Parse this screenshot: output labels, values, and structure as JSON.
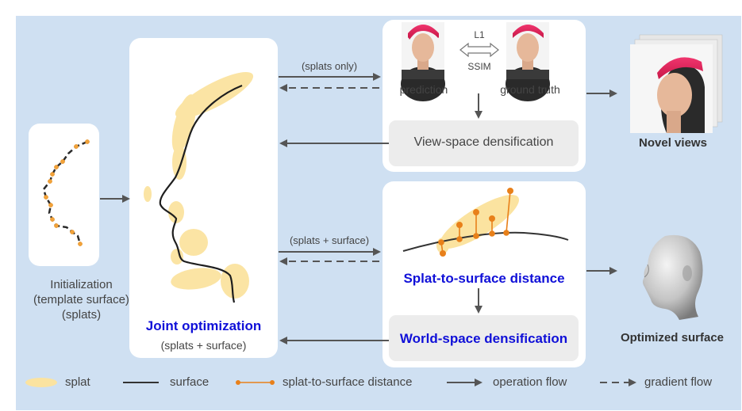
{
  "labels": {
    "initialization": [
      "Initialization",
      "(template surface)",
      "(splats)"
    ],
    "joint_optimization": "Joint optimization",
    "joint_optimization_sub": "(splats + surface)",
    "splats_only": "(splats only)",
    "splats_surface": "(splats + surface)",
    "prediction": "prediction",
    "ground_truth": "ground truth",
    "loss_l1": "L1",
    "loss_ssim": "SSIM",
    "view_space_densification": "View-space densification",
    "novel_views": "Novel views",
    "splat_to_surface_distance": "Splat-to-surface distance",
    "world_space_densification": "World-space densification",
    "optimized_surface": "Optimized surface"
  },
  "legend": {
    "splat": "splat",
    "surface": "surface",
    "distance": "splat-to-surface distance",
    "operation_flow": "operation flow",
    "gradient_flow": "gradient flow"
  },
  "colors": {
    "background": "#cfe0f2",
    "splat": "#fbe3a0",
    "surface": "#2b2b2b",
    "distance": "#e8801a",
    "arrow": "#555555",
    "highlight_text": "#1010d8",
    "cap": "#e0245e"
  },
  "icons": [
    "photo-portrait",
    "head-mesh",
    "double-arrow"
  ]
}
